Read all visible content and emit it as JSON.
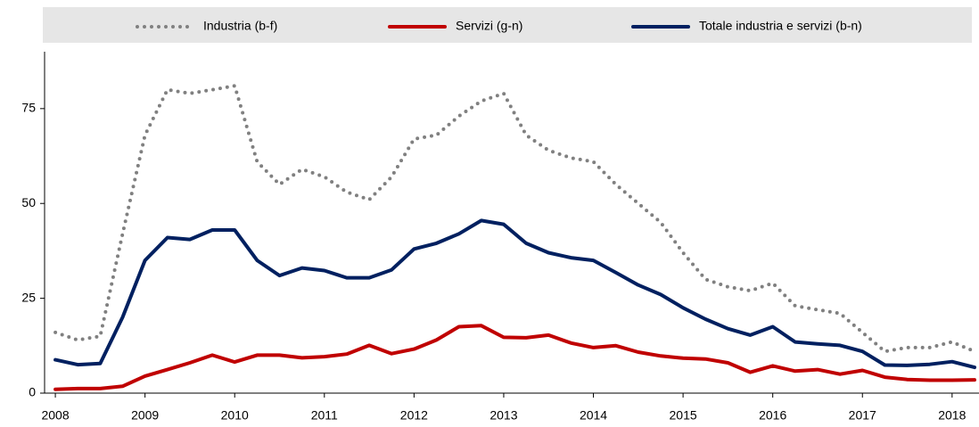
{
  "chart_data": {
    "type": "line",
    "x": [
      2008,
      2008.25,
      2008.5,
      2008.75,
      2009,
      2009.25,
      2009.5,
      2009.75,
      2010,
      2010.25,
      2010.5,
      2010.75,
      2011,
      2011.25,
      2011.5,
      2011.75,
      2012,
      2012.25,
      2012.5,
      2012.75,
      2013,
      2013.25,
      2013.5,
      2013.75,
      2014,
      2014.25,
      2014.5,
      2014.75,
      2015,
      2015.25,
      2015.5,
      2015.75,
      2016,
      2016.25,
      2016.5,
      2016.75,
      2017,
      2017.25,
      2017.5,
      2017.75,
      2018,
      2018.25
    ],
    "series": [
      {
        "name": "Industria (b-f)",
        "color": "#808080",
        "dash": "dotted",
        "values": [
          16,
          14,
          15,
          42,
          68,
          80,
          79,
          80,
          81,
          61,
          55,
          59,
          57,
          53,
          51,
          57,
          67,
          68,
          73,
          77,
          79,
          68,
          64,
          62,
          61,
          55,
          50,
          45,
          37,
          30,
          28,
          27,
          29,
          23,
          22,
          21,
          16,
          11,
          12,
          12,
          13.5,
          11
        ]
      },
      {
        "name": "Servizi (g-n)",
        "color": "#c00000",
        "dash": "solid",
        "values": [
          1,
          1.2,
          1.2,
          1.8,
          4.5,
          6.2,
          8,
          10,
          8.2,
          10,
          10,
          9.3,
          9.6,
          10.3,
          12.6,
          10.4,
          11.6,
          14,
          17.5,
          17.8,
          14.7,
          14.6,
          15.3,
          13.2,
          12,
          12.5,
          10.8,
          9.8,
          9.2,
          9,
          8,
          5.5,
          7.2,
          5.8,
          6.2,
          5,
          6,
          4.2,
          3.6,
          3.4,
          3.4,
          3.5
        ]
      },
      {
        "name": "Totale industria e servizi (b-n)",
        "color": "#002060",
        "dash": "solid",
        "values": [
          8.8,
          7.5,
          7.8,
          20,
          35,
          41,
          40.5,
          43,
          43,
          35,
          31,
          33,
          32.3,
          30.4,
          30.4,
          32.5,
          38,
          39.5,
          42,
          45.5,
          44.5,
          39.5,
          37,
          35.7,
          35,
          31.8,
          28.5,
          26,
          22.5,
          19.5,
          17,
          15.3,
          17.5,
          13.5,
          13,
          12.6,
          11,
          7.4,
          7.3,
          7.6,
          8.3,
          6.8
        ]
      }
    ],
    "xlim": [
      2007.88,
      2018.3
    ],
    "xticks": [
      2008,
      2009,
      2010,
      2011,
      2012,
      2013,
      2014,
      2015,
      2016,
      2017,
      2018
    ],
    "ylim": [
      0,
      90
    ],
    "yticks": [
      0,
      25,
      50,
      75
    ],
    "grid": false,
    "legend": "top"
  }
}
